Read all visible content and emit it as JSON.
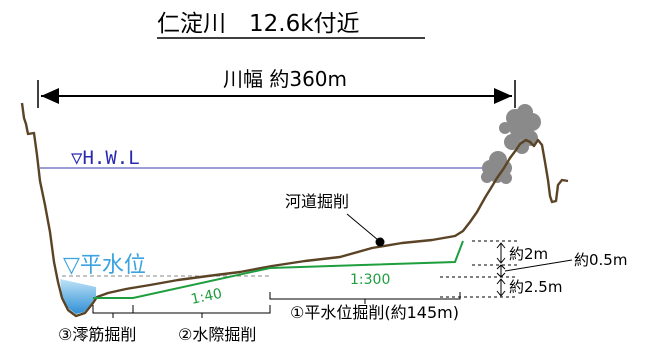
{
  "title": "仁淀川　12.6k付近",
  "river_width": "川幅 約360m",
  "hwl": "▽H.W.L",
  "normal_level": "▽平水位",
  "channel_excavation": "河道掘削",
  "slope_300": "1:300",
  "slope_40": "1:40",
  "dim_2m": "約2m",
  "dim_05m": "約0.5m",
  "dim_25m": "約2.5m",
  "label_1": "①平水位掘削(約145m)",
  "label_2": "②水際掘削",
  "label_3": "③澪筋掘削",
  "colors": {
    "hwl_line": "#3a3ab0",
    "hwl_text": "#2a2ab0",
    "water_text": "#3aa3e0",
    "green": "#1e9e3e",
    "ground": "#5b4325",
    "tree": "#8a8a8a"
  }
}
